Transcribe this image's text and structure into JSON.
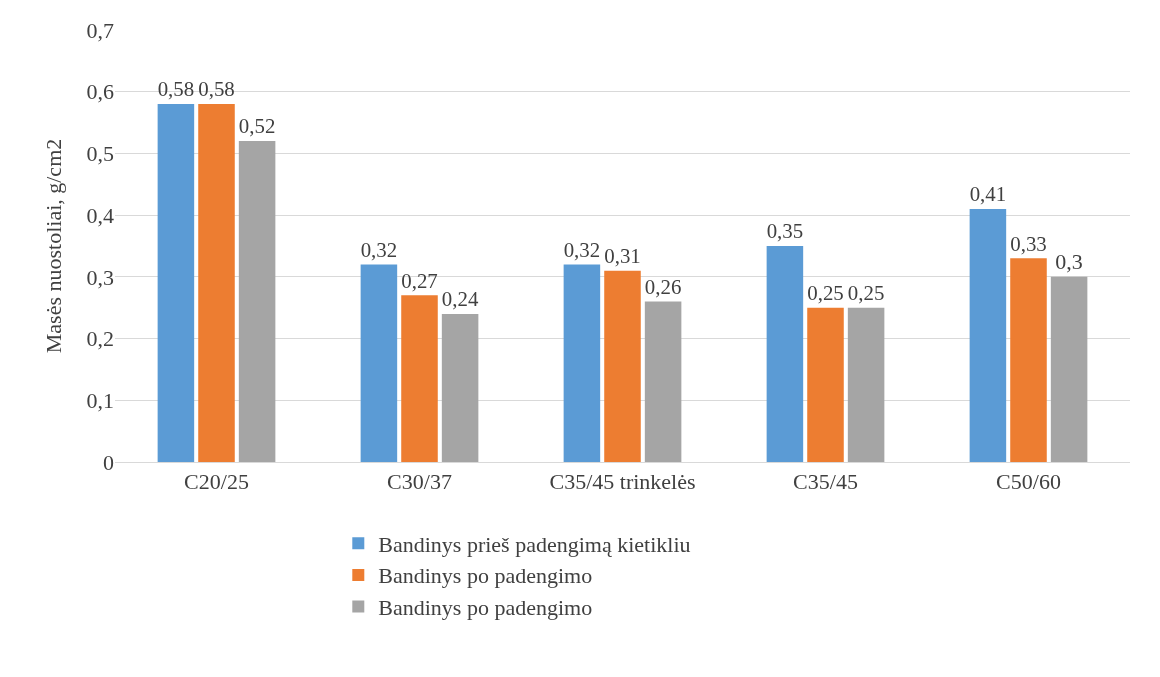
{
  "chart_data": {
    "type": "bar",
    "ylabel": "Masės nuostoliai, g/cm2",
    "categories": [
      "C20/25",
      "C30/37",
      "C35/45 trinkelės",
      "C35/45",
      "C50/60"
    ],
    "series": [
      {
        "name": "Bandinys prieš padengimą kietikliu",
        "color": "#5b9bd5",
        "values": [
          0.58,
          0.32,
          0.32,
          0.35,
          0.41
        ],
        "value_labels": [
          "0,58",
          "0,32",
          "0,32",
          "0,35",
          "0,41"
        ]
      },
      {
        "name": "Bandinys po padengimo",
        "color": "#ed7d31",
        "values": [
          0.58,
          0.27,
          0.31,
          0.25,
          0.33
        ],
        "value_labels": [
          "0,58",
          "0,27",
          "0,31",
          "0,25",
          "0,33"
        ]
      },
      {
        "name": "Bandinys po padengimo",
        "color": "#a5a5a5",
        "values": [
          0.52,
          0.24,
          0.26,
          0.25,
          0.3
        ],
        "value_labels": [
          "0,52",
          "0,24",
          "0,26",
          "0,25",
          "0,3"
        ]
      }
    ],
    "ylim": [
      0,
      0.7
    ],
    "yticks": [
      0,
      {
        "value": 0.1,
        "label": "0,1"
      },
      {
        "value": 0.2,
        "label": "0,2"
      },
      {
        "value": 0.3,
        "label": "0,3"
      },
      {
        "value": 0.4,
        "label": "0,4"
      },
      {
        "value": 0.5,
        "label": "0,5"
      },
      {
        "value": 0.6,
        "label": "0,6"
      },
      {
        "value": 0.7,
        "label": "0,7"
      }
    ],
    "grid": "y",
    "legend": "bottom"
  }
}
